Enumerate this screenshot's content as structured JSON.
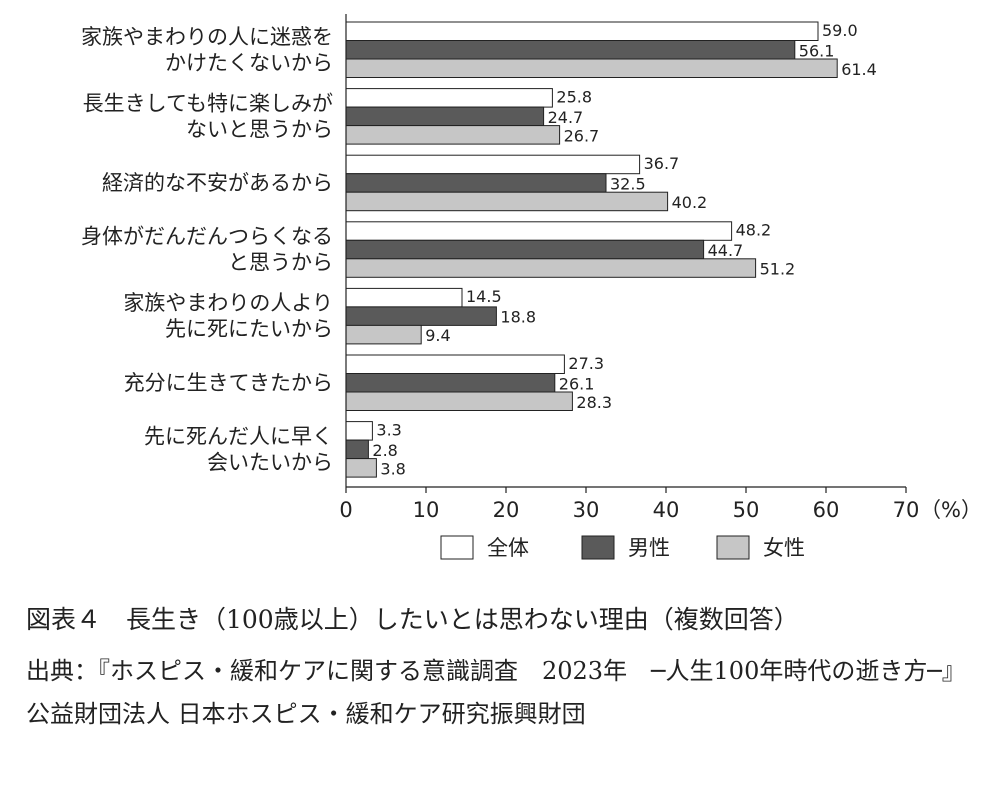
{
  "chart_data": {
    "type": "bar",
    "orientation": "horizontal",
    "categories": [
      [
        "家族やまわりの人に迷惑を",
        "かけたくないから"
      ],
      [
        "長生きしても特に楽しみが",
        "ないと思うから"
      ],
      [
        "経済的な不安があるから"
      ],
      [
        "身体がだんだんつらくなる",
        "と思うから"
      ],
      [
        "家族やまわりの人より",
        "先に死にたいから"
      ],
      [
        "充分に生きてきたから"
      ],
      [
        "先に死んだ人に早く",
        "会いたいから"
      ]
    ],
    "series": [
      {
        "name": "全体",
        "color": "#ffffff",
        "values": [
          59.0,
          25.8,
          36.7,
          48.2,
          14.5,
          27.3,
          3.3
        ],
        "labels": [
          "59.0",
          "25.8",
          "36.7",
          "48.2",
          "14.5",
          "27.3",
          "3.3"
        ]
      },
      {
        "name": "男性",
        "color": "#5a5a5a",
        "values": [
          56.1,
          24.7,
          32.5,
          44.7,
          18.8,
          26.1,
          2.8
        ],
        "labels": [
          "56.1",
          "24.7",
          "32.5",
          "44.7",
          "18.8",
          "26.1",
          "2.8"
        ]
      },
      {
        "name": "女性",
        "color": "#c6c6c6",
        "values": [
          61.4,
          26.7,
          40.2,
          51.2,
          9.4,
          28.3,
          3.8
        ],
        "labels": [
          "61.4",
          "26.7",
          "40.2",
          "51.2",
          "9.4",
          "28.3",
          "3.8"
        ]
      }
    ],
    "xlim": [
      0,
      70
    ],
    "xticks": [
      0,
      10,
      20,
      30,
      40,
      50,
      60,
      70
    ],
    "xtick_labels": [
      "0",
      "10",
      "20",
      "30",
      "40",
      "50",
      "60",
      "70"
    ],
    "unit": "（%）",
    "legend_position": "bottom",
    "grid": false
  },
  "caption": {
    "title": "図表４　長生き（100歳以上）したいとは思わない理由（複数回答）",
    "source": "出典：『ホスピス・緩和ケアに関する意識調査　2023年　─人生100年時代の逝き方─』公益財団法人 日本ホスピス・緩和ケア研究振興財団"
  }
}
